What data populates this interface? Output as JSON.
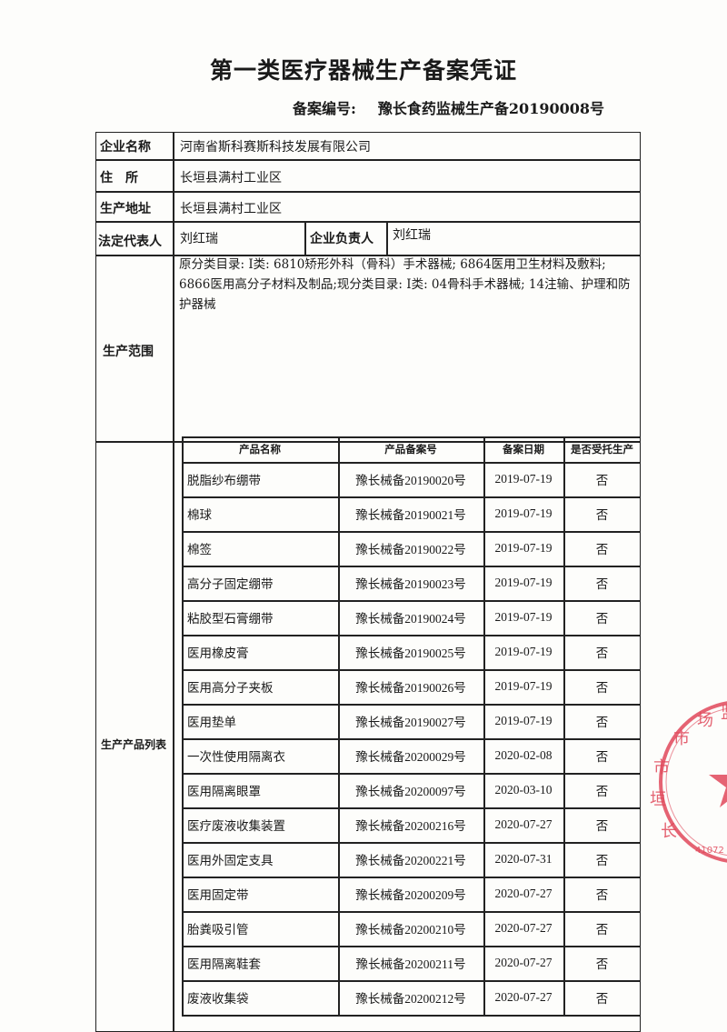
{
  "title": "第一类医疗器械生产备案凭证",
  "record_number": {
    "label": "备案编号:",
    "value": "豫长食药监械生产备20190008号"
  },
  "fields": {
    "company_name": {
      "label": "企业名称",
      "value": "河南省斯科赛斯科技发展有限公司"
    },
    "address": {
      "label": "住　所",
      "value": "长垣县满村工业区"
    },
    "production_address": {
      "label": "生产地址",
      "value": "长垣县满村工业区"
    },
    "legal_rep": {
      "label": "法定代表人",
      "value": "刘红瑞"
    },
    "company_head": {
      "label": "企业负责人",
      "value": "刘红瑞"
    },
    "scope": {
      "label": "生产范围",
      "value": "原分类目录: Ⅰ类: 6810矫形外科（骨科）手术器械; 6864医用卫生材料及敷料; 6866医用高分子材料及制品;现分类目录: Ⅰ类: 04骨科手术器械; 14注输、护理和防护器械"
    }
  },
  "product_list": {
    "label": "生产产品列表",
    "headers": [
      "产品名称",
      "产品备案号",
      "备案日期",
      "是否受托生产"
    ],
    "rows": [
      [
        "脱脂纱布绷带",
        "豫长械备20190020号",
        "2019-07-19",
        "否"
      ],
      [
        "棉球",
        "豫长械备20190021号",
        "2019-07-19",
        "否"
      ],
      [
        "棉签",
        "豫长械备20190022号",
        "2019-07-19",
        "否"
      ],
      [
        "高分子固定绷带",
        "豫长械备20190023号",
        "2019-07-19",
        "否"
      ],
      [
        "粘胶型石膏绷带",
        "豫长械备20190024号",
        "2019-07-19",
        "否"
      ],
      [
        "医用橡皮膏",
        "豫长械备20190025号",
        "2019-07-19",
        "否"
      ],
      [
        "医用高分子夹板",
        "豫长械备20190026号",
        "2019-07-19",
        "否"
      ],
      [
        "医用垫单",
        "豫长械备20190027号",
        "2019-07-19",
        "否"
      ],
      [
        "一次性使用隔离衣",
        "豫长械备20200029号",
        "2020-02-08",
        "否"
      ],
      [
        "医用隔离眼罩",
        "豫长械备20200097号",
        "2020-03-10",
        "否"
      ],
      [
        "医疗废液收集装置",
        "豫长械备20200216号",
        "2020-07-27",
        "否"
      ],
      [
        "医用外固定支具",
        "豫长械备20200221号",
        "2020-07-31",
        "否"
      ],
      [
        "医用固定带",
        "豫长械备20200209号",
        "2020-07-27",
        "否"
      ],
      [
        "胎粪吸引管",
        "豫长械备20200210号",
        "2020-07-27",
        "否"
      ],
      [
        "医用隔离鞋套",
        "豫长械备20200211号",
        "2020-07-27",
        "否"
      ],
      [
        "废液收集袋",
        "豫长械备20200212号",
        "2020-07-27",
        "否"
      ]
    ]
  },
  "stamp": {
    "text": "长垣市市场监",
    "code": "41072",
    "color": "#e0485a"
  }
}
